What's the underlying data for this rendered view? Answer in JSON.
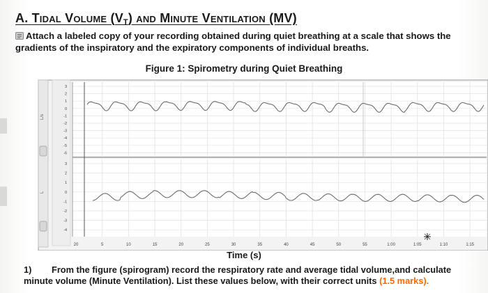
{
  "section": {
    "prefix": "A.",
    "word1": "Tidal",
    "word2": "Volume",
    "vt_letter": "V",
    "vt_sub": "T",
    "word3": "and",
    "word4": "Minute",
    "word5": "Ventilation",
    "mv": "(MV)"
  },
  "instruction": "Attach a labeled copy of your recording obtained during quiet breathing at a scale that shows the gradients of the inspiratory and the expiratory components of individual breaths.",
  "figure": {
    "caption": "Figure 1: Spirometry during Quiet Breathing"
  },
  "chart_data": {
    "type": "line",
    "xlabel": "Time (s)",
    "channel_labels": [
      "L/s",
      "L"
    ],
    "x_ticks": [
      "20",
      "5",
      "10",
      "15",
      "20",
      "25",
      "30",
      "35",
      "40",
      "45",
      "50",
      "55",
      "1:00",
      "1:05",
      "1:10",
      "1:15"
    ],
    "top_y_ticks": [
      "3",
      "2",
      "1",
      "0",
      "-1",
      "-2",
      "-3",
      "-4",
      "-5",
      "-6"
    ],
    "bottom_y_ticks": [
      "3",
      "2",
      "1",
      "0",
      "-1",
      "-2",
      "-3",
      "-4"
    ],
    "series": [
      {
        "values": [
          0.4,
          0.45,
          0.3,
          0.2,
          0.3
        ]
      },
      {
        "values": [
          -0.9,
          -0.7,
          -0.6,
          -0.6,
          -0.7,
          -0.8,
          -0.9,
          -0.95,
          -1.0,
          -1.0,
          -1.05,
          -1.1
        ]
      }
    ],
    "approx_breath_count": 16,
    "colors": {
      "trace": "#6b6b6b",
      "grid": "#e2e2e2"
    }
  },
  "question": {
    "number": "1)",
    "text": "From the figure (spirogram) record the respiratory rate and average tidal volume,and calculate minute volume (Minute Ventilation). List these values below, with their correct units",
    "marks": "(1.5 marks)."
  }
}
